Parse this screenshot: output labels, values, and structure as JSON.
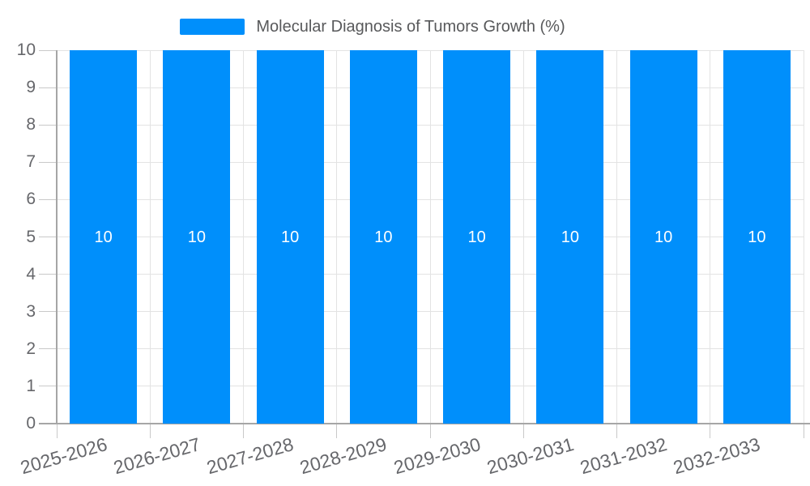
{
  "legend": {
    "label": "Molecular Diagnosis of Tumors Growth (%)"
  },
  "chart_data": {
    "type": "bar",
    "title": "Molecular Diagnosis of Tumors Growth (%)",
    "categories": [
      "2025-2026",
      "2026-2027",
      "2027-2028",
      "2028-2029",
      "2029-2030",
      "2030-2031",
      "2031-2032",
      "2032-2033"
    ],
    "values": [
      10,
      10,
      10,
      10,
      10,
      10,
      10,
      10
    ],
    "data_labels": [
      "10",
      "10",
      "10",
      "10",
      "10",
      "10",
      "10",
      "10"
    ],
    "xlabel": "",
    "ylabel": "",
    "ylim": [
      0,
      10
    ],
    "ytick_step": 1,
    "ytick_labels": [
      "0",
      "1",
      "2",
      "3",
      "4",
      "5",
      "6",
      "7",
      "8",
      "9",
      "10"
    ],
    "grid": true,
    "legend_position": "top",
    "colors": {
      "bar": "#008FFB",
      "data_label": "#FFFFFF",
      "grid_line": "#E3E3E3",
      "axis_line": "#A6A6A6",
      "tick_mark": "#C9C9C9",
      "axis_label": "#66676B",
      "legend_text": "#58595B",
      "background": "#FFFFFF"
    }
  }
}
